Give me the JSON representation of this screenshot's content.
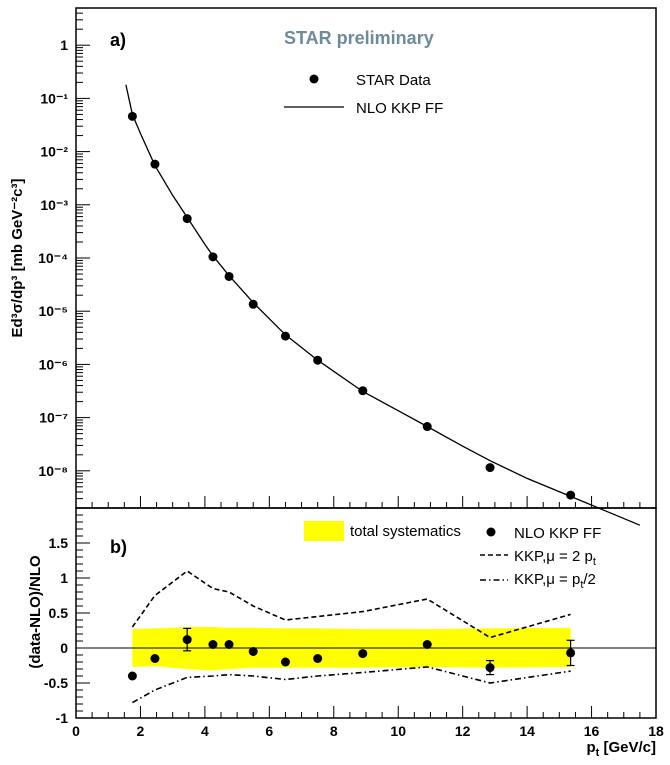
{
  "chart_data": [
    {
      "type": "scatter",
      "panel_label": "a)",
      "annotation": "STAR preliminary",
      "ylabel": "Ed³σ/dp³ [mb GeV⁻²c³]",
      "yscale": "log",
      "xlim": [
        0,
        18
      ],
      "ylim": [
        2e-09,
        5
      ],
      "ytick_labels": [
        "1",
        "10⁻¹",
        "10⁻²",
        "10⁻³",
        "10⁻⁴",
        "10⁻⁵",
        "10⁻⁶",
        "10⁻⁷",
        "10⁻⁸"
      ],
      "ytick_values": [
        1,
        0.1,
        0.01,
        0.001,
        0.0001,
        1e-05,
        1e-06,
        1e-07,
        1e-08
      ],
      "legend": {
        "placement": "top-right",
        "data_label": "STAR Data",
        "curve_label": "NLO KKP FF"
      },
      "series": [
        {
          "name": "STAR Data",
          "kind": "points",
          "x": [
            1.75,
            2.45,
            3.45,
            4.25,
            4.75,
            5.5,
            6.5,
            7.5,
            8.9,
            10.9,
            12.85,
            15.35
          ],
          "y": [
            0.046,
            0.0058,
            0.00055,
            0.000105,
            4.5e-05,
            1.35e-05,
            3.4e-06,
            1.2e-06,
            3.2e-07,
            6.8e-08,
            1.15e-08,
            3.5e-09
          ]
        },
        {
          "name": "NLO KKP FF",
          "kind": "line",
          "x": [
            1.55,
            1.75,
            2.0,
            2.45,
            3.0,
            3.45,
            4.0,
            4.25,
            4.75,
            5.5,
            6.5,
            7.5,
            8.9,
            10.0,
            10.9,
            12.0,
            12.85,
            14.0,
            15.35,
            16.5,
            17.5
          ],
          "y": [
            0.18,
            0.05,
            0.022,
            0.0055,
            0.0015,
            0.00058,
            0.00018,
            0.00011,
            4.65e-05,
            1.45e-05,
            3.6e-06,
            1.2e-06,
            3.1e-07,
            1.35e-07,
            6.8e-08,
            2.9e-08,
            1.55e-08,
            7.2e-09,
            3.3e-09,
            1.7e-09,
            9.5e-10
          ]
        }
      ]
    },
    {
      "type": "scatter",
      "panel_label": "b)",
      "ylabel": "(data-NLO)/NLO",
      "xlabel_main": "p",
      "xlabel_sub": "t",
      "xlabel_rest": " [GeV/c]",
      "xlim": [
        0,
        18
      ],
      "ylim": [
        -1,
        2
      ],
      "xtick_labels": [
        "0",
        "2",
        "4",
        "6",
        "8",
        "10",
        "12",
        "14",
        "16",
        "18"
      ],
      "xtick_values": [
        0,
        2,
        4,
        6,
        8,
        10,
        12,
        14,
        16,
        18
      ],
      "ytick_labels": [
        "-1",
        "-0.5",
        "0",
        "0.5",
        "1",
        "1.5"
      ],
      "ytick_values": [
        -1,
        -0.5,
        0,
        0.5,
        1,
        1.5
      ],
      "legend": {
        "band_label": "total systematics",
        "points_label": "NLO KKP FF",
        "dashed_label_main": "KKP,μ = 2 p",
        "dashed_label_sub": "t",
        "dashdot_label_main": "KKP,μ = p",
        "dashdot_label_sub": "t",
        "dashdot_label_rest": "/2"
      },
      "band_color": "#ffff00",
      "band": {
        "x": [
          1.75,
          2.45,
          3.45,
          4.25,
          4.75,
          5.5,
          6.5,
          7.5,
          8.9,
          10.9,
          12.85,
          15.35
        ],
        "lower": [
          -0.27,
          -0.26,
          -0.3,
          -0.32,
          -0.3,
          -0.28,
          -0.28,
          -0.28,
          -0.28,
          -0.27,
          -0.28,
          -0.27
        ],
        "upper": [
          0.27,
          0.28,
          0.3,
          0.3,
          0.29,
          0.29,
          0.28,
          0.28,
          0.27,
          0.27,
          0.28,
          0.29
        ]
      },
      "series": [
        {
          "name": "NLO KKP FF",
          "kind": "points",
          "x": [
            1.75,
            2.45,
            3.45,
            4.25,
            4.75,
            5.5,
            6.5,
            7.5,
            8.9,
            10.9,
            12.85,
            15.35
          ],
          "y": [
            -0.4,
            -0.15,
            0.12,
            0.05,
            0.05,
            -0.05,
            -0.2,
            -0.15,
            -0.08,
            0.05,
            -0.28,
            -0.07
          ],
          "yerr": [
            0,
            0,
            0.16,
            0,
            0,
            0,
            0,
            0,
            0,
            0,
            0.1,
            0.18
          ]
        },
        {
          "name": "KKP,μ = 2 pt",
          "kind": "dashed",
          "x": [
            1.75,
            2.45,
            3.45,
            4.25,
            4.75,
            5.5,
            6.5,
            7.5,
            8.9,
            10.9,
            12.85,
            15.35
          ],
          "y": [
            0.3,
            0.75,
            1.1,
            0.85,
            0.8,
            0.6,
            0.4,
            0.45,
            0.52,
            0.7,
            0.15,
            0.48
          ]
        },
        {
          "name": "KKP,μ = pt/2",
          "kind": "dashdot",
          "x": [
            1.75,
            2.45,
            3.45,
            4.25,
            4.75,
            5.5,
            6.5,
            7.5,
            8.9,
            10.9,
            12.85,
            15.35
          ],
          "y": [
            -0.78,
            -0.6,
            -0.42,
            -0.4,
            -0.38,
            -0.4,
            -0.45,
            -0.4,
            -0.35,
            -0.27,
            -0.5,
            -0.33
          ]
        }
      ]
    }
  ]
}
